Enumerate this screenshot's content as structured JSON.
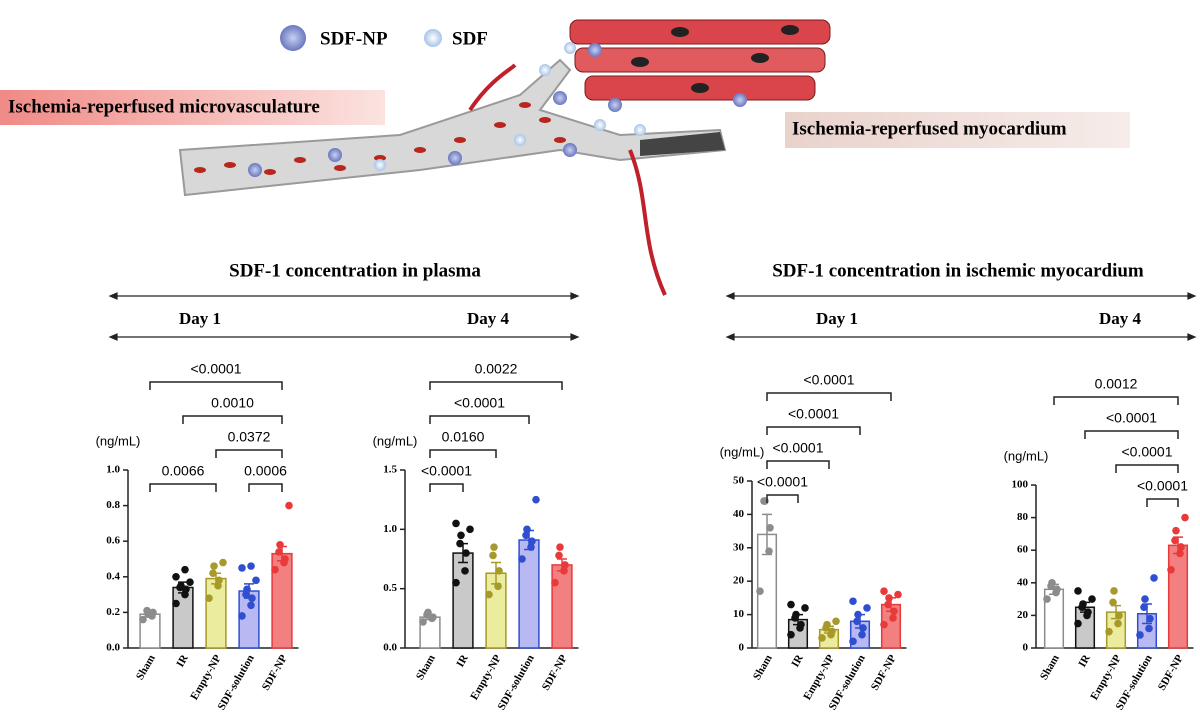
{
  "illustration": {
    "legend": [
      "SDF-NP",
      "SDF"
    ],
    "labels": [
      "Ischemia-reperfused microvasculature",
      "Ischemia-reperfused myocardium"
    ]
  },
  "sections": [
    {
      "title": "SDF-1 concentration in plasma"
    },
    {
      "title": "SDF-1 concentration in ischemic myocardium"
    }
  ],
  "chart_data": [
    {
      "type": "bar",
      "title": "Day 1",
      "ylabel": "(ng/mL)",
      "categories": [
        "Sham",
        "IR",
        "Empty-NP",
        "SDF-solution",
        "SDF-NP"
      ],
      "values": [
        0.19,
        0.34,
        0.39,
        0.32,
        0.53
      ],
      "errors": [
        0.01,
        0.03,
        0.03,
        0.04,
        0.04
      ],
      "points": [
        [
          0.16,
          0.18,
          0.2,
          0.21,
          0.19
        ],
        [
          0.25,
          0.3,
          0.33,
          0.34,
          0.35,
          0.37,
          0.4,
          0.44
        ],
        [
          0.28,
          0.35,
          0.38,
          0.42,
          0.46,
          0.48
        ],
        [
          0.18,
          0.24,
          0.28,
          0.3,
          0.33,
          0.38,
          0.45,
          0.46
        ],
        [
          0.44,
          0.48,
          0.5,
          0.54,
          0.58,
          0.8
        ]
      ],
      "colors": [
        "#8c8c8c",
        "#111111",
        "#a89a2a",
        "#2f4fd0",
        "#e83a3a"
      ],
      "fills": [
        "#ffffff",
        "#c9c9c9",
        "#ecec9e",
        "#b8b8f2",
        "#f38080"
      ],
      "ylim": [
        0,
        1.0
      ],
      "yticks": [
        {
          "value": 0,
          "label": "0.0"
        },
        0.2,
        0.4,
        0.6,
        0.8,
        {
          "value": 1.0,
          "label": "1.0"
        }
      ],
      "comparisons": [
        {
          "groups": [
            "Sham",
            "Empty-NP"
          ],
          "label": "0.0066"
        },
        {
          "groups": [
            "SDF-solution",
            "SDF-NP"
          ],
          "label": "0.0006"
        },
        {
          "groups": [
            "Empty-NP",
            "SDF-NP"
          ],
          "label": "0.0372"
        },
        {
          "groups": [
            "IR",
            "SDF-NP"
          ],
          "label": "0.0010"
        },
        {
          "groups": [
            "Sham",
            "SDF-NP"
          ],
          "label": "<0.0001"
        }
      ]
    },
    {
      "type": "bar",
      "title": "Day 4",
      "ylabel": "(ng/mL)",
      "categories": [
        "Sham",
        "IR",
        "Empty-NP",
        "SDF-solution",
        "SDF-NP"
      ],
      "values": [
        0.26,
        0.8,
        0.63,
        0.91,
        0.7
      ],
      "errors": [
        0.02,
        0.08,
        0.09,
        0.08,
        0.05
      ],
      "points": [
        [
          0.22,
          0.25,
          0.26,
          0.28,
          0.3
        ],
        [
          0.55,
          0.65,
          0.8,
          0.88,
          0.95,
          1.0,
          1.05
        ],
        [
          0.45,
          0.52,
          0.65,
          0.78,
          0.85
        ],
        [
          0.75,
          0.85,
          0.9,
          0.95,
          1.0,
          1.25
        ],
        [
          0.55,
          0.65,
          0.7,
          0.78,
          0.85
        ]
      ],
      "colors": [
        "#8c8c8c",
        "#111111",
        "#a89a2a",
        "#2f4fd0",
        "#e83a3a"
      ],
      "fills": [
        "#ffffff",
        "#c9c9c9",
        "#ecec9e",
        "#b8b8f2",
        "#f38080"
      ],
      "ylim": [
        0,
        1.5
      ],
      "yticks": [
        {
          "value": 0,
          "label": "0.0"
        },
        0.5,
        {
          "value": 1.0,
          "label": "1.0"
        },
        1.5
      ],
      "comparisons": [
        {
          "groups": [
            "Sham",
            "IR"
          ],
          "label": "<0.0001"
        },
        {
          "groups": [
            "Sham",
            "Empty-NP"
          ],
          "label": "0.0160"
        },
        {
          "groups": [
            "Sham",
            "SDF-solution"
          ],
          "label": "<0.0001"
        },
        {
          "groups": [
            "Sham",
            "SDF-NP"
          ],
          "label": "0.0022"
        }
      ]
    },
    {
      "type": "bar",
      "title": "Day 1",
      "ylabel": "(ng/mL)",
      "categories": [
        "Sham",
        "IR",
        "Empty-NP",
        "SDF-solution",
        "SDF-NP"
      ],
      "values": [
        34,
        8.5,
        5.5,
        8,
        13
      ],
      "errors": [
        6,
        1.5,
        1,
        2,
        2
      ],
      "points": [
        [
          17,
          29,
          36,
          44,
          44
        ],
        [
          4,
          6,
          7,
          9,
          10,
          12,
          13
        ],
        [
          3,
          4,
          5,
          6,
          7,
          8
        ],
        [
          2,
          4,
          6,
          8,
          10,
          12,
          14
        ],
        [
          7,
          9,
          11,
          13,
          15,
          16,
          17
        ]
      ],
      "colors": [
        "#8c8c8c",
        "#111111",
        "#a89a2a",
        "#2f4fd0",
        "#e83a3a"
      ],
      "fills": [
        "#ffffff",
        "#c9c9c9",
        "#ecec9e",
        "#b8b8f2",
        "#f38080"
      ],
      "ylim": [
        0,
        50
      ],
      "yticks": [
        0,
        10,
        20,
        30,
        40,
        50
      ],
      "comparisons": [
        {
          "groups": [
            "Sham",
            "IR"
          ],
          "label": "<0.0001"
        },
        {
          "groups": [
            "Sham",
            "Empty-NP"
          ],
          "label": "<0.0001"
        },
        {
          "groups": [
            "Sham",
            "SDF-solution"
          ],
          "label": "<0.0001"
        },
        {
          "groups": [
            "Sham",
            "SDF-NP"
          ],
          "label": "<0.0001"
        }
      ]
    },
    {
      "type": "bar",
      "title": "Day 4",
      "ylabel": "(ng/mL)",
      "categories": [
        "Sham",
        "IR",
        "Empty-NP",
        "SDF-solution",
        "SDF-NP"
      ],
      "values": [
        36,
        25,
        22,
        21,
        63
      ],
      "errors": [
        3,
        3,
        4,
        6,
        5
      ],
      "points": [
        [
          30,
          34,
          36,
          38,
          40
        ],
        [
          15,
          20,
          22,
          25,
          27,
          30,
          35
        ],
        [
          10,
          15,
          20,
          28,
          35
        ],
        [
          8,
          12,
          18,
          25,
          30,
          43
        ],
        [
          48,
          58,
          62,
          66,
          72,
          80
        ]
      ],
      "colors": [
        "#8c8c8c",
        "#111111",
        "#a89a2a",
        "#2f4fd0",
        "#e83a3a"
      ],
      "fills": [
        "#ffffff",
        "#c9c9c9",
        "#ecec9e",
        "#b8b8f2",
        "#f38080"
      ],
      "ylim": [
        0,
        100
      ],
      "yticks": [
        0,
        20,
        40,
        60,
        80,
        100
      ],
      "comparisons": [
        {
          "groups": [
            "SDF-solution",
            "SDF-NP"
          ],
          "label": "<0.0001"
        },
        {
          "groups": [
            "Empty-NP",
            "SDF-NP"
          ],
          "label": "<0.0001"
        },
        {
          "groups": [
            "IR",
            "SDF-NP"
          ],
          "label": "<0.0001"
        },
        {
          "groups": [
            "Sham",
            "SDF-NP"
          ],
          "label": "0.0012"
        }
      ]
    }
  ]
}
